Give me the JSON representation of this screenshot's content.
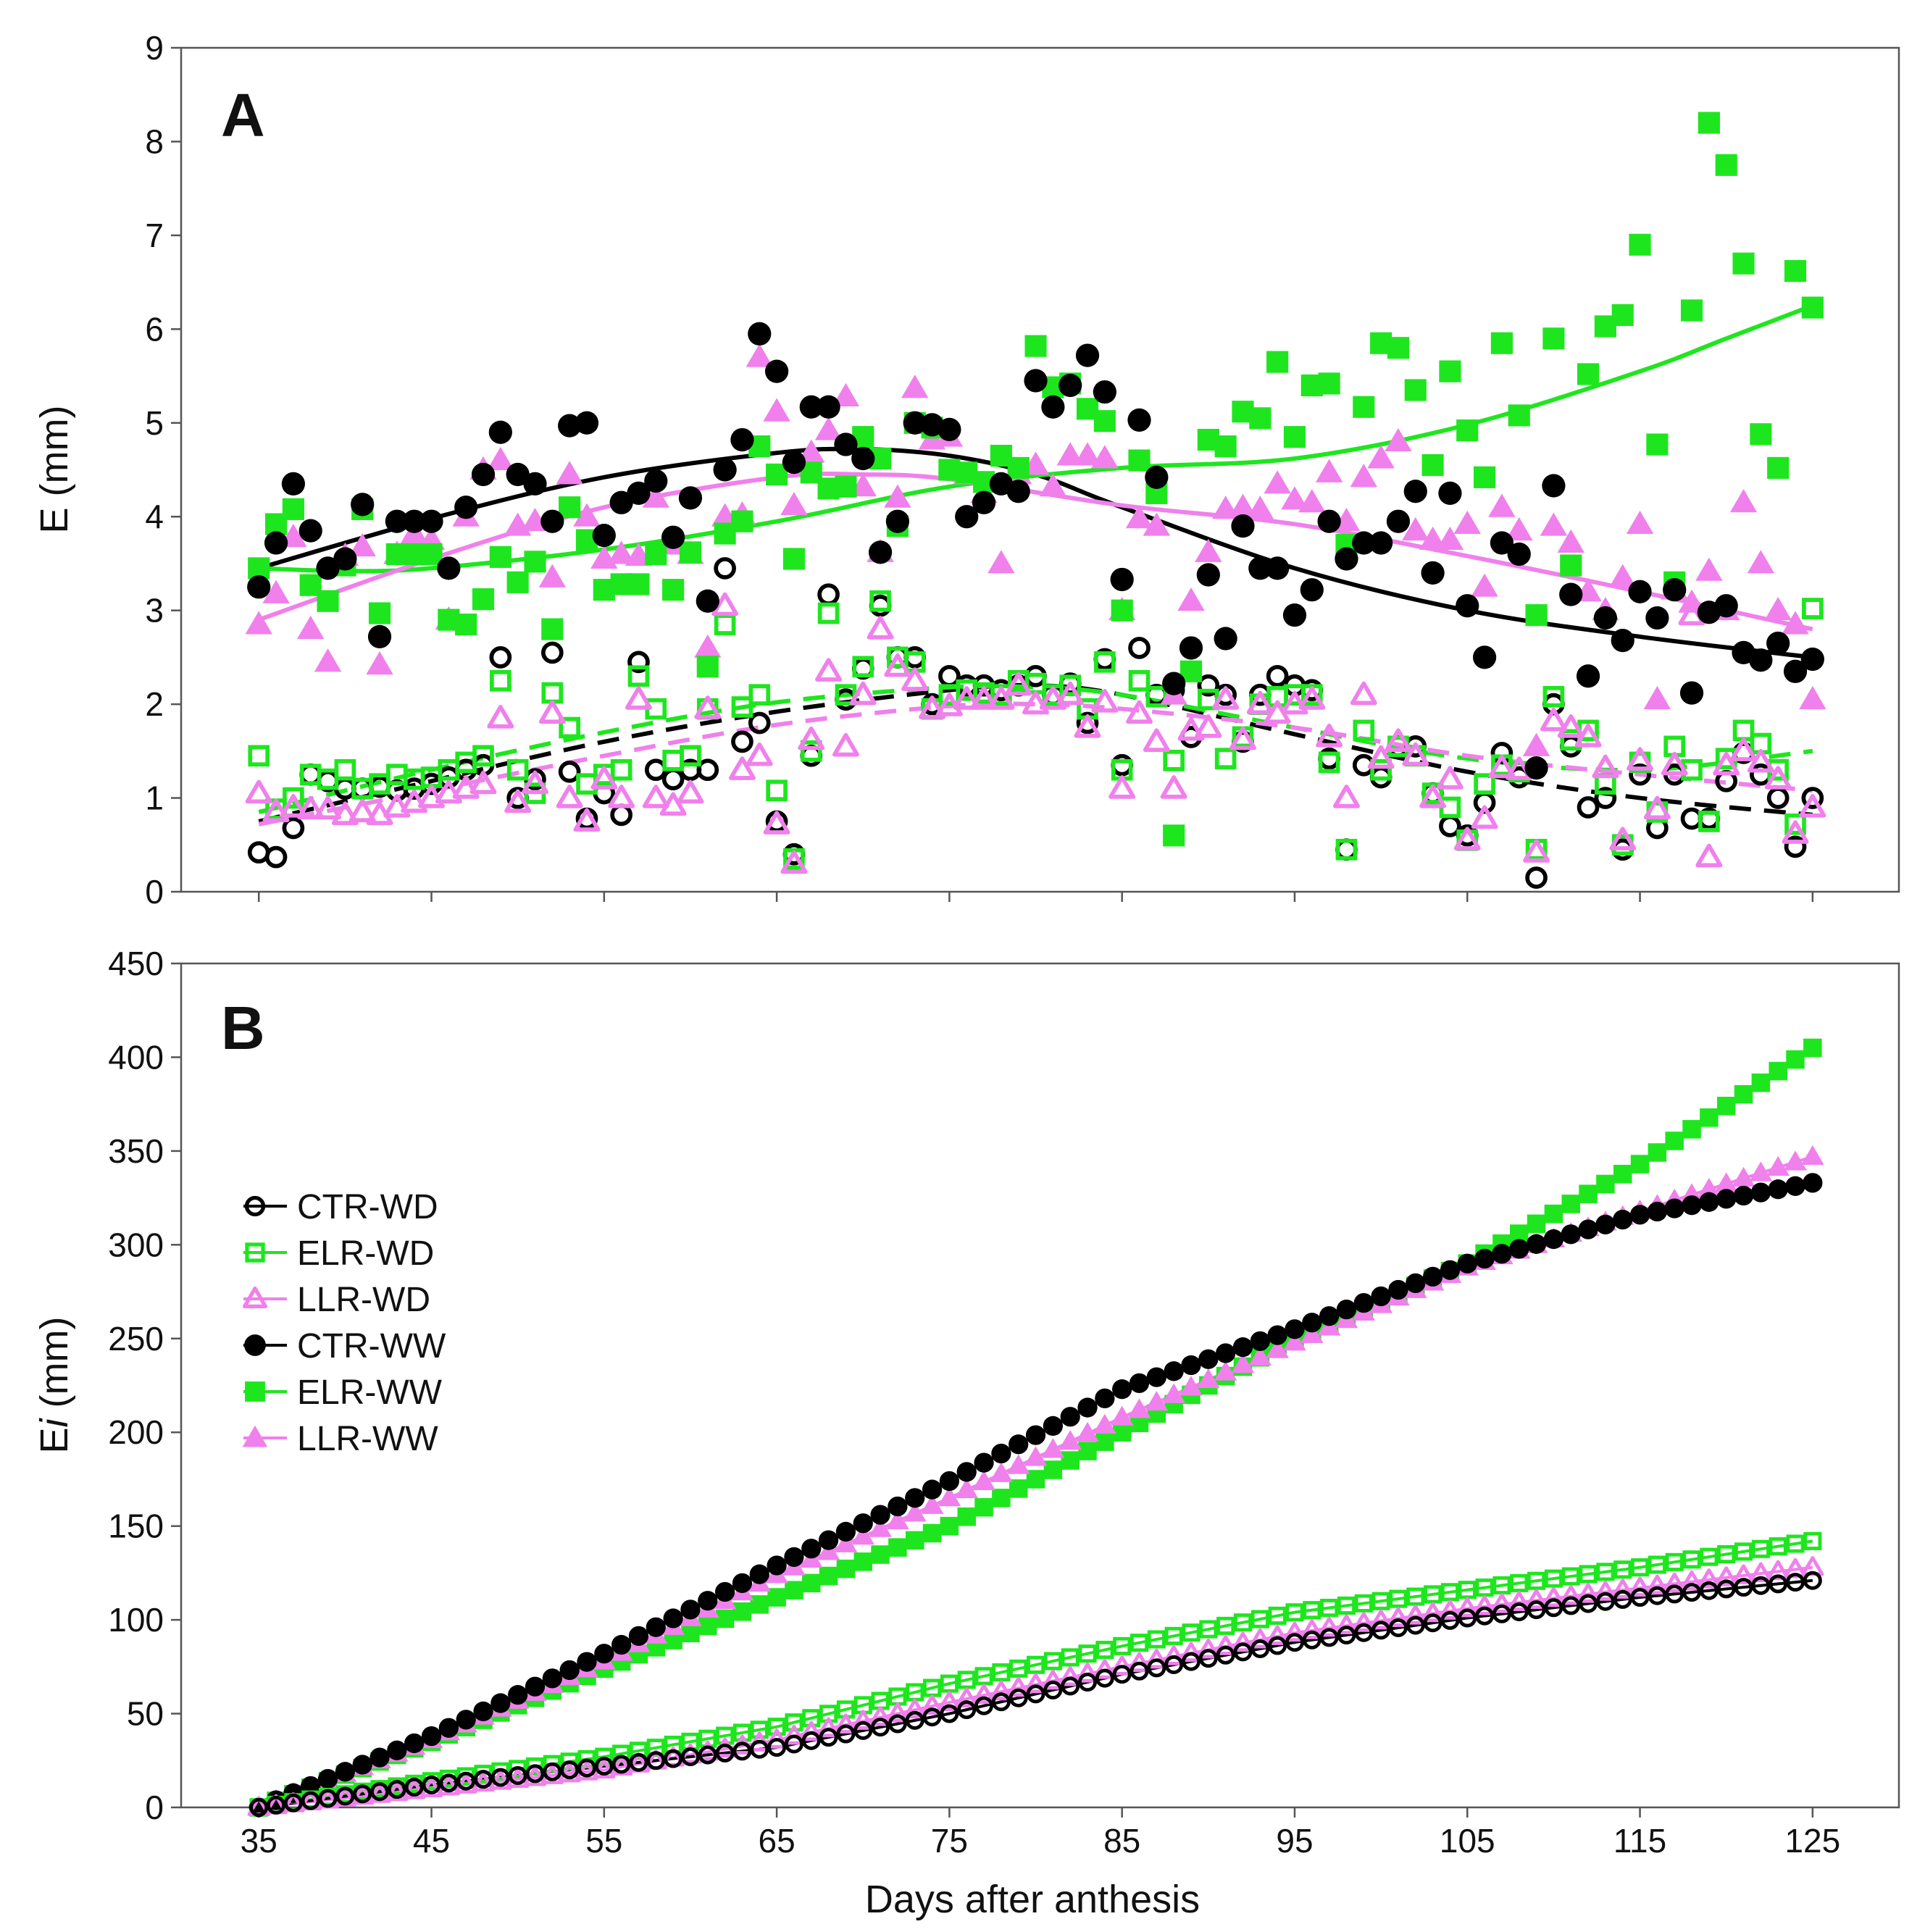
{
  "colors": {
    "CTR": "#000000",
    "ELR": "#1ee61e",
    "LLR": "#f080ec"
  },
  "chart_data": [
    {
      "panel": "A",
      "type": "scatter",
      "xlabel": "",
      "ylabel": "E (mm)",
      "xlim": [
        30.5,
        130
      ],
      "ylim": [
        0,
        9
      ],
      "yticks": [
        "0",
        "1",
        "2",
        "3",
        "4",
        "5",
        "6",
        "7",
        "8",
        "9"
      ],
      "x": [
        35,
        36,
        37,
        38,
        39,
        40,
        41,
        42,
        43,
        44,
        45,
        46,
        47,
        48,
        49,
        50,
        51,
        52,
        53,
        54,
        55,
        56,
        57,
        58,
        59,
        60,
        61,
        62,
        63,
        64,
        65,
        66,
        67,
        68,
        69,
        70,
        71,
        72,
        73,
        74,
        75,
        76,
        77,
        78,
        79,
        80,
        81,
        82,
        83,
        84,
        85,
        86,
        87,
        88,
        89,
        90,
        91,
        92,
        93,
        94,
        95,
        96,
        97,
        98,
        99,
        100,
        101,
        102,
        103,
        104,
        105,
        106,
        107,
        108,
        109,
        110,
        111,
        112,
        113,
        114,
        115,
        116,
        117,
        118,
        119,
        120,
        121,
        122,
        123,
        124,
        125
      ],
      "series": [
        {
          "name": "CTR-WD",
          "values": [
            0.42,
            0.37,
            0.68,
            1.25,
            1.18,
            1.1,
            1.1,
            1.12,
            1.08,
            1.1,
            1.15,
            1.22,
            1.3,
            1.35,
            2.5,
            1.0,
            1.2,
            2.55,
            1.28,
            0.78,
            1.05,
            0.82,
            2.45,
            1.3,
            1.2,
            1.3,
            1.3,
            3.45,
            1.6,
            1.8,
            0.75,
            0.4,
            1.45,
            3.17,
            2.05,
            2.38,
            3.05,
            2.5,
            2.5,
            2.0,
            2.3,
            2.2,
            2.2,
            2.15,
            2.2,
            2.3,
            2.1,
            2.22,
            1.8,
            2.48,
            1.35,
            2.6,
            2.1,
            2.15,
            1.65,
            2.2,
            2.1,
            1.6,
            2.1,
            2.3,
            2.2,
            2.15,
            1.42,
            0.45,
            1.35,
            1.22,
            1.55,
            1.55,
            1.05,
            0.7,
            0.6,
            0.95,
            1.48,
            1.22,
            0.15,
            2.0,
            1.55,
            0.9,
            1.0,
            0.45,
            1.25,
            0.68,
            1.25,
            0.78,
            0.78,
            1.18,
            1.48,
            1.25,
            1.0,
            0.48,
            1.0
          ]
        },
        {
          "name": "ELR-WD",
          "values": [
            1.45,
            0.88,
            1.0,
            1.25,
            1.2,
            1.3,
            1.1,
            1.15,
            1.25,
            1.2,
            1.22,
            1.3,
            1.38,
            1.45,
            2.25,
            1.3,
            1.05,
            2.12,
            1.75,
            1.15,
            1.25,
            1.3,
            2.3,
            1.95,
            1.4,
            1.45,
            1.95,
            2.85,
            1.97,
            2.1,
            1.08,
            0.35,
            1.5,
            2.97,
            2.1,
            2.4,
            3.1,
            2.5,
            2.45,
            1.95,
            2.1,
            2.15,
            2.12,
            2.1,
            2.25,
            2.22,
            2.1,
            2.2,
            1.95,
            2.45,
            1.3,
            2.25,
            2.08,
            1.4,
            2.35,
            2.05,
            1.42,
            1.65,
            2.0,
            2.08,
            2.1,
            2.1,
            1.38,
            0.45,
            1.72,
            1.3,
            1.55,
            1.45,
            1.05,
            0.9,
            0.55,
            1.15,
            1.35,
            1.28,
            0.45,
            2.08,
            1.62,
            1.72,
            1.15,
            0.5,
            1.38,
            0.85,
            1.55,
            1.3,
            0.75,
            1.42,
            1.72,
            1.58,
            1.3,
            0.72,
            3.02
          ]
        },
        {
          "name": "LLR-WD",
          "values": [
            1.05,
            0.85,
            0.9,
            0.88,
            0.88,
            0.82,
            0.85,
            0.82,
            0.9,
            0.95,
            1.0,
            1.05,
            1.1,
            1.15,
            1.85,
            0.95,
            1.15,
            1.9,
            1.0,
            0.75,
            1.2,
            1.0,
            2.05,
            1.0,
            0.92,
            1.05,
            1.95,
            3.05,
            1.3,
            1.45,
            0.72,
            0.3,
            1.62,
            2.35,
            1.55,
            2.1,
            2.8,
            2.4,
            2.25,
            1.95,
            1.98,
            2.05,
            2.05,
            2.05,
            2.2,
            2.0,
            2.05,
            2.1,
            1.75,
            2.02,
            1.1,
            1.9,
            1.6,
            1.1,
            1.72,
            1.75,
            2.05,
            1.62,
            2.0,
            1.9,
            2.0,
            2.05,
            1.65,
            1.0,
            2.1,
            1.42,
            1.6,
            1.45,
            1.0,
            1.2,
            0.55,
            0.78,
            1.32,
            1.3,
            0.42,
            1.82,
            1.75,
            1.65,
            1.32,
            0.55,
            1.4,
            0.88,
            1.35,
            2.95,
            0.37,
            1.35,
            1.5,
            1.38,
            1.2,
            0.62,
            0.9
          ]
        },
        {
          "name": "CTR-WW",
          "values": [
            3.25,
            3.72,
            4.35,
            3.85,
            3.45,
            3.55,
            4.13,
            2.72,
            3.95,
            3.95,
            3.95,
            3.45,
            4.1,
            4.45,
            4.9,
            4.45,
            4.35,
            3.95,
            4.97,
            5.0,
            3.8,
            4.15,
            4.25,
            4.38,
            3.78,
            4.2,
            3.1,
            4.5,
            4.82,
            5.95,
            5.55,
            4.58,
            5.17,
            5.17,
            4.77,
            4.62,
            3.62,
            3.95,
            5.0,
            4.98,
            4.93,
            4.0,
            4.15,
            4.35,
            4.27,
            5.45,
            5.17,
            5.4,
            5.72,
            5.33,
            3.33,
            5.03,
            4.42,
            2.22,
            2.6,
            3.38,
            2.7,
            3.9,
            3.45,
            3.45,
            2.95,
            3.22,
            3.95,
            3.55,
            3.72,
            3.72,
            3.95,
            4.27,
            3.4,
            4.25,
            3.05,
            2.5,
            3.72,
            3.6,
            1.32,
            4.33,
            3.17,
            2.3,
            2.92,
            2.68,
            3.2,
            2.92,
            3.22,
            2.12,
            2.98,
            3.05,
            2.55,
            2.47,
            2.65,
            2.35,
            2.48
          ]
        },
        {
          "name": "ELR-WW",
          "values": [
            3.45,
            3.92,
            4.08,
            3.27,
            3.1,
            3.48,
            4.08,
            2.97,
            3.6,
            3.6,
            3.6,
            2.9,
            2.85,
            3.12,
            3.57,
            3.3,
            3.52,
            2.8,
            4.1,
            3.75,
            3.22,
            3.28,
            3.28,
            3.6,
            3.22,
            3.62,
            2.4,
            3.82,
            3.95,
            4.75,
            4.45,
            3.55,
            4.47,
            4.3,
            4.32,
            4.85,
            4.62,
            3.9,
            5.0,
            4.95,
            4.5,
            4.47,
            4.37,
            4.65,
            4.52,
            5.82,
            5.38,
            5.42,
            5.15,
            5.02,
            3.0,
            4.6,
            4.25,
            0.6,
            2.35,
            4.82,
            4.75,
            5.12,
            5.05,
            5.65,
            4.85,
            5.4,
            5.42,
            3.7,
            5.17,
            5.85,
            5.8,
            5.35,
            4.55,
            5.55,
            4.92,
            4.42,
            5.85,
            5.08,
            2.95,
            5.9,
            3.48,
            5.52,
            6.03,
            6.15,
            6.9,
            4.77,
            3.3,
            6.2,
            8.2,
            7.75,
            6.7,
            4.88,
            4.52,
            6.62,
            6.23
          ]
        },
        {
          "name": "LLR-WW",
          "values": [
            2.85,
            3.18,
            3.78,
            2.8,
            2.45,
            3.58,
            3.68,
            2.42,
            3.6,
            3.82,
            3.75,
            2.9,
            4.0,
            4.5,
            4.6,
            3.9,
            3.95,
            3.35,
            4.45,
            4.0,
            3.55,
            3.6,
            3.58,
            4.2,
            3.7,
            3.6,
            2.6,
            4.0,
            4.02,
            5.7,
            5.12,
            4.12,
            4.68,
            4.92,
            5.28,
            4.32,
            3.62,
            4.2,
            5.37,
            4.82,
            4.85,
            4.45,
            4.25,
            3.5,
            4.45,
            4.55,
            4.32,
            4.65,
            4.65,
            4.62,
            3.0,
            3.98,
            3.9,
            2.1,
            3.1,
            3.62,
            4.08,
            4.1,
            4.08,
            4.35,
            4.18,
            4.15,
            4.47,
            3.95,
            4.42,
            4.62,
            4.8,
            3.85,
            3.75,
            3.75,
            3.92,
            3.25,
            4.1,
            3.85,
            1.55,
            3.9,
            3.72,
            3.2,
            3.0,
            3.35,
            3.92,
            2.05,
            3.22,
            3.08,
            3.42,
            3.0,
            4.15,
            3.5,
            3.0,
            2.85,
            2.05
          ]
        }
      ],
      "fits": [
        {
          "name": "CTR-WD",
          "style": "dashed",
          "x": [
            35,
            45,
            55,
            65,
            75,
            80,
            85,
            95,
            105,
            115,
            125
          ],
          "values": [
            0.75,
            1.18,
            1.6,
            1.92,
            2.15,
            2.2,
            2.1,
            1.68,
            1.28,
            1.0,
            0.82
          ]
        },
        {
          "name": "ELR-WD",
          "style": "dashed",
          "x": [
            35,
            45,
            55,
            65,
            75,
            80,
            85,
            95,
            105,
            115,
            125
          ],
          "values": [
            0.85,
            1.3,
            1.7,
            2.02,
            2.18,
            2.18,
            2.1,
            1.75,
            1.42,
            1.3,
            1.5
          ]
        },
        {
          "name": "LLR-WD",
          "style": "dashed",
          "x": [
            35,
            45,
            55,
            65,
            75,
            80,
            85,
            95,
            105,
            115,
            125
          ],
          "values": [
            0.72,
            1.08,
            1.45,
            1.78,
            1.98,
            2.0,
            1.95,
            1.75,
            1.45,
            1.25,
            1.08
          ]
        },
        {
          "name": "CTR-WW",
          "style": "solid",
          "x": [
            35,
            45,
            55,
            65,
            70,
            75,
            80,
            85,
            95,
            105,
            115,
            125
          ],
          "values": [
            3.45,
            3.98,
            4.42,
            4.68,
            4.72,
            4.65,
            4.45,
            4.1,
            3.45,
            3.0,
            2.72,
            2.5
          ]
        },
        {
          "name": "ELR-WW",
          "style": "solid",
          "x": [
            35,
            40,
            45,
            55,
            65,
            75,
            85,
            95,
            105,
            115,
            120,
            125
          ],
          "values": [
            3.45,
            3.42,
            3.45,
            3.65,
            3.95,
            4.32,
            4.52,
            4.62,
            4.98,
            5.55,
            5.9,
            6.25
          ]
        },
        {
          "name": "LLR-WW",
          "style": "solid",
          "x": [
            35,
            45,
            55,
            65,
            70,
            75,
            85,
            95,
            105,
            115,
            125
          ],
          "values": [
            2.9,
            3.55,
            4.1,
            4.42,
            4.45,
            4.4,
            4.12,
            3.92,
            3.58,
            3.2,
            2.8
          ]
        }
      ]
    },
    {
      "panel": "B",
      "type": "line",
      "xlabel": "Days after anthesis",
      "ylabel": "Ei (mm)",
      "xlim": [
        30.5,
        130
      ],
      "ylim": [
        0,
        450
      ],
      "xticks": [
        "35",
        "45",
        "55",
        "65",
        "75",
        "85",
        "95",
        "105",
        "115",
        "125"
      ],
      "yticks": [
        "0",
        "50",
        "100",
        "150",
        "200",
        "250",
        "300",
        "350",
        "400",
        "450"
      ],
      "legend_position": "middle-left",
      "series": [
        {
          "name": "CTR-WD",
          "anchor_x": [
            35,
            45,
            55,
            65,
            75,
            85,
            95,
            105,
            115,
            125
          ],
          "values": [
            0,
            12,
            22,
            32,
            50,
            71,
            88,
            101,
            112,
            121
          ]
        },
        {
          "name": "ELR-WD",
          "anchor_x": [
            35,
            45,
            55,
            65,
            75,
            85,
            95,
            105,
            115,
            125
          ],
          "values": [
            0,
            14,
            27,
            43,
            66,
            86,
            104,
            116,
            128,
            142
          ]
        },
        {
          "name": "LLR-WD",
          "anchor_x": [
            35,
            45,
            55,
            65,
            75,
            85,
            95,
            105,
            115,
            125
          ],
          "values": [
            0,
            10,
            20,
            36,
            56,
            75,
            93,
            106,
            117,
            128
          ]
        },
        {
          "name": "CTR-WW",
          "anchor_x": [
            35,
            45,
            55,
            65,
            75,
            85,
            95,
            105,
            115,
            125
          ],
          "values": [
            0,
            38,
            82,
            129,
            174,
            223,
            255,
            290,
            316,
            333
          ]
        },
        {
          "name": "ELR-WW",
          "anchor_x": [
            35,
            45,
            55,
            65,
            75,
            85,
            95,
            105,
            115,
            125
          ],
          "values": [
            0,
            35,
            74,
            112,
            150,
            200,
            250,
            290,
            343,
            405
          ]
        },
        {
          "name": "LLR-WW",
          "anchor_x": [
            35,
            45,
            55,
            65,
            75,
            85,
            95,
            105,
            115,
            125
          ],
          "values": [
            0,
            36,
            78,
            124,
            165,
            208,
            248,
            288,
            318,
            347
          ]
        }
      ]
    }
  ]
}
